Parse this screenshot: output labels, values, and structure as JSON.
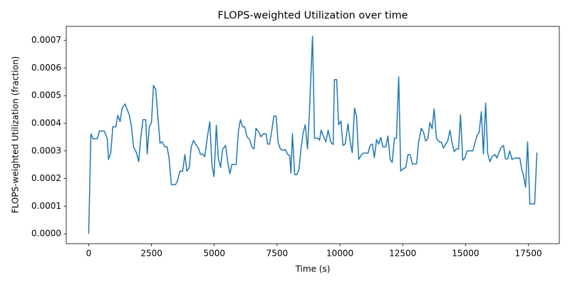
{
  "chart_data": {
    "type": "line",
    "title": "FLOPS-weighted Utilization over time",
    "x_label": "Time (s)",
    "y_label": "FLOPS-weighted Utilization (fraction)",
    "series": [
      {
        "color": "#1f77b4",
        "x": [
          0,
          90,
          170,
          340,
          430,
          620,
          740,
          790,
          880,
          960,
          1080,
          1160,
          1250,
          1330,
          1450,
          1620,
          1700,
          1790,
          1900,
          1990,
          2070,
          2160,
          2270,
          2330,
          2410,
          2500,
          2580,
          2670,
          2750,
          2840,
          2920,
          3030,
          3120,
          3200,
          3290,
          3460,
          3550,
          3630,
          3740,
          3830,
          3910,
          4000,
          4080,
          4170,
          4250,
          4370,
          4450,
          4540,
          4620,
          4710,
          4820,
          4910,
          4990,
          5080,
          5160,
          5250,
          5330,
          5450,
          5530,
          5620,
          5700,
          5870,
          5960,
          6040,
          6130,
          6210,
          6300,
          6410,
          6490,
          6580,
          6660,
          6780,
          6860,
          6950,
          7060,
          7120,
          7200,
          7290,
          7370,
          7460,
          7540,
          7630,
          7740,
          7830,
          7910,
          8000,
          8050,
          8110,
          8200,
          8280,
          8370,
          8450,
          8540,
          8620,
          8710,
          8790,
          8910,
          8990,
          9130,
          9190,
          9250,
          9330,
          9440,
          9530,
          9640,
          9730,
          9780,
          9870,
          9950,
          10040,
          10120,
          10210,
          10320,
          10410,
          10490,
          10580,
          10660,
          10750,
          10830,
          10920,
          11120,
          11200,
          11290,
          11370,
          11460,
          11540,
          11630,
          11710,
          11830,
          11910,
          12000,
          12080,
          12170,
          12250,
          12340,
          12420,
          12510,
          12620,
          12710,
          12790,
          12880,
          12960,
          13050,
          13130,
          13240,
          13330,
          13410,
          13500,
          13580,
          13670,
          13750,
          13840,
          13950,
          14040,
          14120,
          14210,
          14290,
          14380,
          14460,
          14550,
          14630,
          14720,
          14800,
          14890,
          14970,
          15060,
          15200,
          15290,
          15370,
          15460,
          15540,
          15630,
          15710,
          15800,
          15880,
          15970,
          16050,
          16170,
          16250,
          16340,
          16420,
          16510,
          16590,
          16680,
          16760,
          16850,
          16960,
          17160,
          17240,
          17300,
          17390,
          17470,
          17560,
          17750,
          17840
        ],
        "values": [
          0,
          0.000362,
          0.000344,
          0.000344,
          0.000372,
          0.000372,
          0.000344,
          0.000269,
          0.000294,
          0.000387,
          0.000387,
          0.000429,
          0.000406,
          0.000455,
          0.00047,
          0.000429,
          0.00039,
          0.000313,
          0.000294,
          0.000261,
          0.000344,
          0.000413,
          0.000413,
          0.000289,
          0.000387,
          0.000403,
          0.000537,
          0.000522,
          0.000429,
          0.000328,
          0.000333,
          0.000315,
          0.000315,
          0.000274,
          0.000178,
          0.000178,
          0.000196,
          0.000227,
          0.000227,
          0.000287,
          0.000227,
          0.000238,
          0.000313,
          0.000338,
          0.000325,
          0.00031,
          0.000287,
          0.000289,
          0.000279,
          0.000341,
          0.000406,
          0.000245,
          0.000207,
          0.000393,
          0.000274,
          0.00024,
          0.000305,
          0.00032,
          0.000263,
          0.000217,
          0.000251,
          0.000251,
          0.000372,
          0.000413,
          0.000387,
          0.000387,
          0.000351,
          0.000341,
          0.000315,
          0.000307,
          0.000382,
          0.000367,
          0.000351,
          0.000362,
          0.000362,
          0.000325,
          0.000325,
          0.000375,
          0.000426,
          0.000426,
          0.000331,
          0.000307,
          0.000302,
          0.000305,
          0.000289,
          0.000282,
          0.00022,
          0.000362,
          0.000214,
          0.000214,
          0.000232,
          0.000307,
          0.000367,
          0.000395,
          0.000307,
          0.000447,
          0.000715,
          0.000346,
          0.000346,
          0.000338,
          0.000375,
          0.000356,
          0.000333,
          0.000375,
          0.000331,
          0.000323,
          0.000558,
          0.000558,
          0.000395,
          0.000408,
          0.00032,
          0.000325,
          0.000398,
          0.000333,
          0.000294,
          0.000455,
          0.000426,
          0.000269,
          0.000282,
          0.000292,
          0.000292,
          0.00032,
          0.000325,
          0.000276,
          0.000341,
          0.000325,
          0.000349,
          0.000315,
          0.000315,
          0.000354,
          0.000269,
          0.000258,
          0.000346,
          0.000346,
          0.000568,
          0.000227,
          0.000235,
          0.00024,
          0.000287,
          0.000287,
          0.000253,
          0.000253,
          0.000253,
          0.000331,
          0.000382,
          0.000367,
          0.000336,
          0.000344,
          0.000403,
          0.00038,
          0.000452,
          0.000346,
          0.000333,
          0.000331,
          0.00031,
          0.000325,
          0.000336,
          0.000375,
          0.000331,
          0.000297,
          0.000307,
          0.000307,
          0.000431,
          0.000266,
          0.000274,
          0.0003,
          0.0003,
          0.0003,
          0.000328,
          0.000356,
          0.000367,
          0.000442,
          0.000289,
          0.000473,
          0.000292,
          0.000261,
          0.000279,
          0.000287,
          0.000274,
          0.000297,
          0.000313,
          0.00032,
          0.000271,
          0.000271,
          0.0003,
          0.000269,
          0.000274,
          0.000274,
          0.000232,
          0.000214,
          0.000168,
          0.000333,
          0.000108,
          0.000108,
          0.000294
        ]
      }
    ],
    "xlim": [
      -892,
      18732
    ],
    "ylim": [
      -3.58e-05,
      0.0007508
    ],
    "xticks": [
      0,
      2500,
      5000,
      7500,
      10000,
      12500,
      15000,
      17500
    ],
    "yticks": [
      {
        "value": 0,
        "label": "0.0000"
      },
      {
        "value": 0.0001,
        "label": "0.0001"
      },
      {
        "value": 0.0002,
        "label": "0.0002"
      },
      {
        "value": 0.0003,
        "label": "0.0003"
      },
      {
        "value": 0.0004,
        "label": "0.0004"
      },
      {
        "value": 0.0005,
        "label": "0.0005"
      },
      {
        "value": 0.0006,
        "label": "0.0006"
      },
      {
        "value": 0.0007,
        "label": "0.0007"
      }
    ],
    "grid": false
  }
}
